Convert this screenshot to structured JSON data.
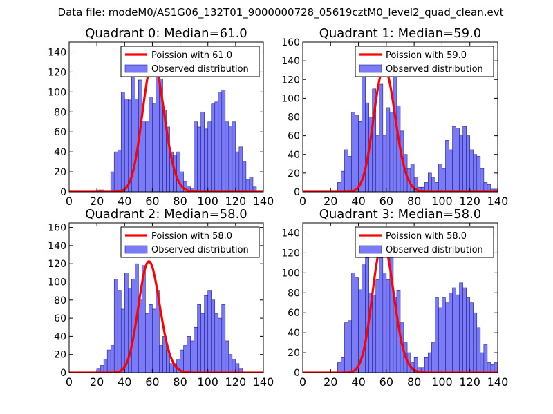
{
  "figure": {
    "suptitle": "Data file: modeM0/AS1G06_132T01_9000000728_05619cztM0_level2_quad_clean.evt"
  },
  "colors": {
    "bar_fill": "#7b7bf7",
    "bar_edge": "#20208a",
    "poisson_line": "#ff0000",
    "legend_border": "#000000"
  },
  "chart_data": [
    {
      "type": "bar",
      "title": "Quadrant 0: Median=61.0",
      "xlim": [
        0,
        140
      ],
      "ylim": [
        0,
        150
      ],
      "xticks": [
        0,
        20,
        40,
        60,
        80,
        100,
        120,
        140
      ],
      "yticks": [
        0,
        20,
        40,
        60,
        80,
        100,
        120,
        140
      ],
      "bin_start": 20,
      "bin_width": 2.5,
      "values": [
        2,
        2,
        0,
        0,
        20,
        40,
        42,
        100,
        93,
        92,
        118,
        93,
        112,
        70,
        70,
        95,
        88,
        128,
        113,
        82,
        65,
        40,
        37,
        40,
        20,
        10,
        5,
        3,
        70,
        65,
        80,
        63,
        70,
        88,
        90,
        100,
        102,
        70,
        66,
        70,
        40,
        45,
        30,
        12,
        15,
        5
      ],
      "legend": {
        "line": "Poission with 61.0",
        "bars": "Observed distribution",
        "position": "top-right"
      },
      "poisson_mean": 61.0
    },
    {
      "type": "bar",
      "title": "Quadrant 1: Median=59.0",
      "xlim": [
        0,
        140
      ],
      "ylim": [
        0,
        160
      ],
      "xticks": [
        0,
        20,
        40,
        60,
        80,
        100,
        120,
        140
      ],
      "yticks": [
        0,
        20,
        40,
        60,
        80,
        100,
        120,
        140,
        160
      ],
      "bin_start": 25,
      "bin_width": 2.5,
      "values": [
        10,
        22,
        45,
        38,
        85,
        82,
        75,
        130,
        95,
        80,
        110,
        60,
        115,
        60,
        90,
        85,
        128,
        92,
        65,
        40,
        25,
        30,
        15,
        5,
        5,
        10,
        20,
        15,
        10,
        30,
        25,
        55,
        45,
        70,
        68,
        60,
        70,
        60,
        45,
        40,
        38,
        25,
        10,
        8,
        3,
        3
      ],
      "legend": {
        "line": "Poission with 59.0",
        "bars": "Observed distribution",
        "position": "top-right"
      },
      "poisson_mean": 59.0
    },
    {
      "type": "bar",
      "title": "Quadrant 2: Median=58.0",
      "xlim": [
        0,
        140
      ],
      "ylim": [
        0,
        165
      ],
      "xticks": [
        0,
        20,
        40,
        60,
        80,
        100,
        120,
        140
      ],
      "yticks": [
        0,
        20,
        40,
        60,
        80,
        100,
        120,
        140,
        160
      ],
      "bin_start": 20,
      "bin_width": 2.5,
      "values": [
        5,
        8,
        15,
        25,
        30,
        103,
        90,
        70,
        110,
        93,
        103,
        120,
        80,
        118,
        65,
        75,
        70,
        90,
        30,
        40,
        25,
        10,
        10,
        15,
        25,
        30,
        40,
        35,
        50,
        75,
        65,
        85,
        90,
        80,
        65,
        60,
        75,
        35,
        20,
        15,
        10,
        5
      ],
      "legend": {
        "line": "Poission with 58.0",
        "bars": "Observed distribution",
        "position": "top-right"
      },
      "poisson_mean": 58.0
    },
    {
      "type": "bar",
      "title": "Quadrant 3: Median=58.0",
      "xlim": [
        0,
        140
      ],
      "ylim": [
        0,
        150
      ],
      "xticks": [
        0,
        20,
        40,
        60,
        80,
        100,
        120,
        140
      ],
      "yticks": [
        0,
        20,
        40,
        60,
        80,
        100,
        120,
        140
      ],
      "bin_start": 25,
      "bin_width": 2.5,
      "values": [
        10,
        15,
        50,
        52,
        100,
        95,
        83,
        108,
        115,
        80,
        78,
        93,
        115,
        100,
        93,
        128,
        75,
        82,
        50,
        30,
        20,
        10,
        15,
        5,
        5,
        15,
        20,
        30,
        75,
        65,
        75,
        70,
        80,
        85,
        78,
        90,
        85,
        75,
        70,
        60,
        45,
        20,
        28,
        10,
        8,
        10
      ],
      "legend": {
        "line": "Poission with 58.0",
        "bars": "Observed distribution",
        "position": "top-right"
      },
      "poisson_mean": 58.0
    }
  ]
}
